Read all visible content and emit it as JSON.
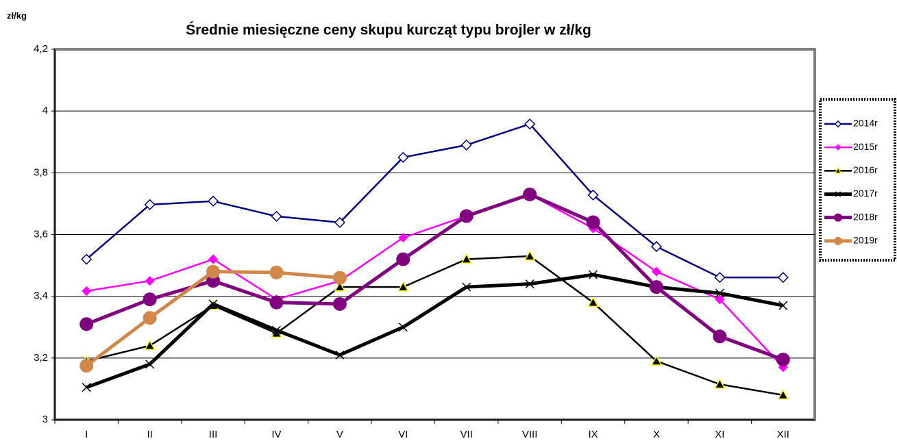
{
  "chart_data": {
    "type": "line",
    "title": "Średnie miesięczne ceny skupu kurcząt typu brojler w zł/kg",
    "y_label": "zł/kg",
    "categories": [
      "I",
      "II",
      "III",
      "IV",
      "V",
      "VI",
      "VII",
      "VIII",
      "IX",
      "X",
      "XI",
      "XII"
    ],
    "ylim": [
      3,
      4.2
    ],
    "yticks": [
      3,
      {
        "value": 3.2,
        "label": "3,2"
      },
      {
        "value": 3.4,
        "label": "3,4"
      },
      {
        "value": 3.6,
        "label": "3,6"
      },
      {
        "value": 3.8,
        "label": "3,8"
      },
      4,
      {
        "value": 4.2,
        "label": "4,2"
      }
    ],
    "grid": true,
    "legend": "right",
    "series": [
      {
        "name": "2014r",
        "color": "#000080",
        "marker": "diamond-open",
        "values": [
          3.52,
          3.697,
          3.708,
          3.659,
          3.639,
          3.85,
          3.89,
          3.958,
          3.728,
          3.561,
          3.461,
          3.461
        ]
      },
      {
        "name": "2015r",
        "color": "#ff00ff",
        "marker": "diamond",
        "values": [
          3.417,
          3.45,
          3.52,
          3.39,
          3.45,
          3.59,
          3.66,
          3.73,
          3.62,
          3.48,
          3.39,
          3.17
        ]
      },
      {
        "name": "2016r",
        "color": "#000000",
        "marker": "triangle",
        "values": [
          3.19,
          3.24,
          3.37,
          3.28,
          3.43,
          3.43,
          3.52,
          3.53,
          3.38,
          3.19,
          3.115,
          3.08
        ]
      },
      {
        "name": "2017r",
        "color": "#000000",
        "marker": "cross",
        "values": [
          3.105,
          3.18,
          3.375,
          3.29,
          3.21,
          3.3,
          3.43,
          3.44,
          3.47,
          3.43,
          3.41,
          3.37
        ]
      },
      {
        "name": "2018r",
        "color": "#800080",
        "marker": "circle",
        "values": [
          3.31,
          3.39,
          3.45,
          3.38,
          3.375,
          3.52,
          3.66,
          3.73,
          3.64,
          3.43,
          3.27,
          3.195
        ]
      },
      {
        "name": "2019r",
        "color": "#d2874a",
        "marker": "circle",
        "values": [
          3.175,
          3.33,
          3.48,
          3.477,
          3.46,
          null,
          null,
          null,
          null,
          null,
          null,
          null
        ]
      }
    ]
  }
}
